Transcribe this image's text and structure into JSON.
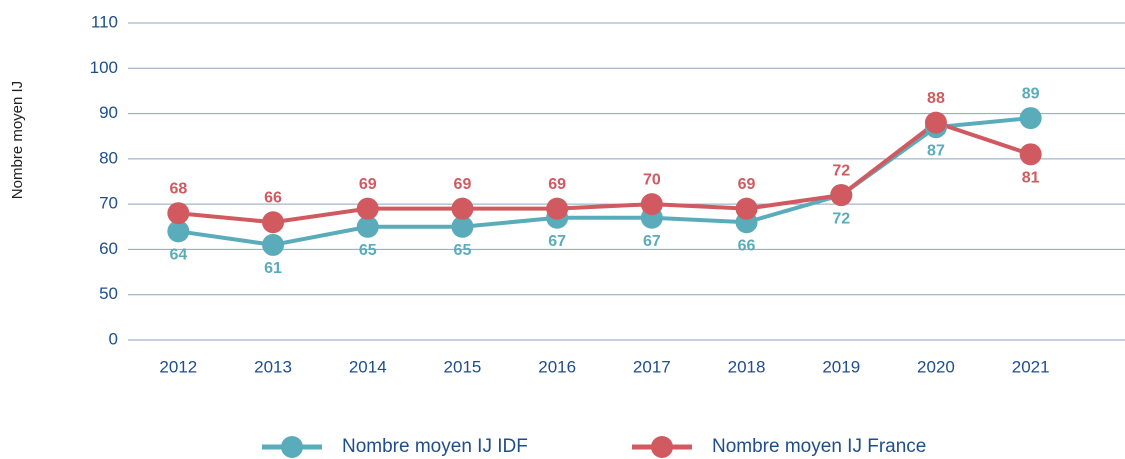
{
  "chart_data": {
    "type": "line",
    "ylabel": "Nombre moyen IJ",
    "categories": [
      "2012",
      "2013",
      "2014",
      "2015",
      "2016",
      "2017",
      "2018",
      "2019",
      "2020",
      "2021"
    ],
    "series": [
      {
        "name": "Nombre moyen IJ IDF",
        "color": "#5aacbb",
        "values": [
          64,
          61,
          65,
          65,
          67,
          67,
          66,
          72,
          87,
          89
        ]
      },
      {
        "name": "Nombre moyen IJ France",
        "color": "#d05a5f",
        "values": [
          68,
          66,
          69,
          69,
          69,
          70,
          69,
          72,
          88,
          81
        ]
      }
    ],
    "ylim": [
      0,
      110
    ],
    "yticks": [
      0,
      50,
      60,
      70,
      80,
      90,
      100,
      110
    ],
    "grid": true,
    "legend": "bottom"
  }
}
